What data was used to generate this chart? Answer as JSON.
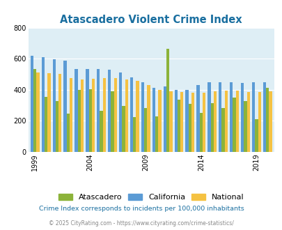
{
  "title": "Atascadero Violent Crime Index",
  "years": [
    1999,
    2000,
    2001,
    2002,
    2003,
    2004,
    2005,
    2006,
    2007,
    2008,
    2009,
    2010,
    2011,
    2012,
    2013,
    2014,
    2015,
    2016,
    2017,
    2018,
    2019,
    2020
  ],
  "atascadero": [
    535,
    355,
    325,
    245,
    400,
    405,
    265,
    390,
    295,
    225,
    280,
    230,
    665,
    335,
    310,
    250,
    315,
    280,
    350,
    325,
    210,
    410
  ],
  "california": [
    620,
    610,
    595,
    585,
    535,
    535,
    535,
    530,
    510,
    480,
    450,
    410,
    420,
    400,
    400,
    430,
    450,
    450,
    450,
    445,
    450,
    450
  ],
  "national": [
    510,
    505,
    500,
    475,
    465,
    470,
    475,
    475,
    465,
    455,
    430,
    400,
    390,
    385,
    380,
    380,
    390,
    395,
    395,
    385,
    385,
    390
  ],
  "color_atascadero": "#8cb33a",
  "color_california": "#5b9bd5",
  "color_national": "#f5c242",
  "plot_bg": "#deeef5",
  "ylim": [
    0,
    800
  ],
  "yticks": [
    0,
    200,
    400,
    600,
    800
  ],
  "xlabel_ticks": [
    1999,
    2004,
    2009,
    2014,
    2019
  ],
  "footnote1": "Crime Index corresponds to incidents per 100,000 inhabitants",
  "footnote2": "© 2025 CityRating.com - https://www.cityrating.com/crime-statistics/",
  "legend_labels": [
    "Atascadero",
    "California",
    "National"
  ],
  "title_color": "#1a6fa0",
  "footnote1_color": "#1a6fa0",
  "footnote2_color": "#888888"
}
